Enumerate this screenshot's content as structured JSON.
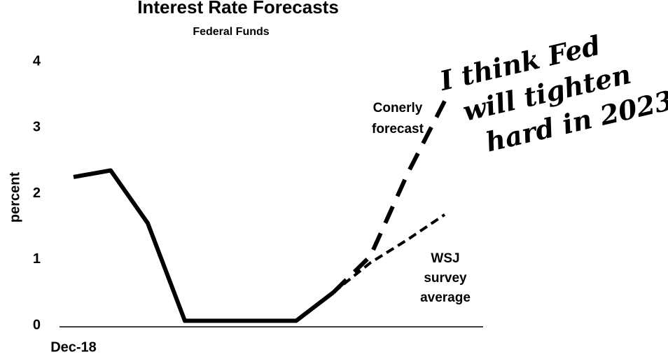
{
  "chart_data": {
    "type": "line",
    "title": "Interest Rate Forecasts",
    "subtitle": "Federal Funds",
    "ylabel": "percent",
    "categories": [
      "Dec-18",
      null,
      null,
      null,
      null,
      null,
      null,
      null,
      null,
      null,
      null
    ],
    "series": [
      {
        "color": "#000000",
        "style": "solid",
        "values": [
          2.25,
          2.35,
          1.55,
          0.07,
          0.07,
          0.07,
          0.07,
          0.5,
          null,
          null,
          null
        ]
      },
      {
        "color": "#000000",
        "style": "long-dash",
        "values": [
          null,
          null,
          null,
          null,
          null,
          null,
          null,
          0.5,
          1.05,
          2.3,
          3.4
        ]
      },
      {
        "color": "#000000",
        "style": "short-dash",
        "values": [
          null,
          null,
          null,
          null,
          null,
          null,
          null,
          0.5,
          0.95,
          1.3,
          1.68
        ]
      }
    ],
    "ylim": [
      0,
      4
    ],
    "yticks": [
      0,
      1,
      2,
      3,
      4
    ],
    "grid": false,
    "annotations": [
      {
        "lines": [
          "Conerly",
          "forecast"
        ]
      },
      {
        "lines": [
          "WSJ",
          "survey",
          "average"
        ]
      },
      {
        "lines": [
          "I think Fed",
          "will tighten",
          "hard in 2023"
        ]
      }
    ]
  }
}
